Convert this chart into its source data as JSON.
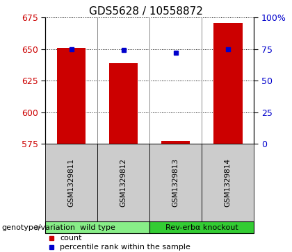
{
  "title": "GDS5628 / 10558872",
  "samples": [
    "GSM1329811",
    "GSM1329812",
    "GSM1329813",
    "GSM1329814"
  ],
  "bar_values": [
    651,
    639,
    577,
    671
  ],
  "percentile_values": [
    74.8,
    74.5,
    72.0,
    74.9
  ],
  "ylim_left": [
    575,
    675
  ],
  "ylim_right": [
    0,
    100
  ],
  "yticks_left": [
    575,
    600,
    625,
    650,
    675
  ],
  "yticks_right": [
    0,
    25,
    50,
    75,
    100
  ],
  "ytick_labels_right": [
    "0",
    "25",
    "50",
    "75",
    "100%"
  ],
  "bar_color": "#cc0000",
  "percentile_color": "#0000cc",
  "groups": [
    {
      "label": "wild type",
      "samples": [
        0,
        1
      ],
      "color": "#88ee88"
    },
    {
      "label": "Rev-erbα knockout",
      "samples": [
        2,
        3
      ],
      "color": "#33cc33"
    }
  ],
  "genotype_label": "genotype/variation",
  "legend_count_label": "count",
  "legend_percentile_label": "percentile rank within the sample",
  "background_label": "#cccccc",
  "title_fontsize": 11,
  "tick_fontsize": 9,
  "label_fontsize": 8.5
}
